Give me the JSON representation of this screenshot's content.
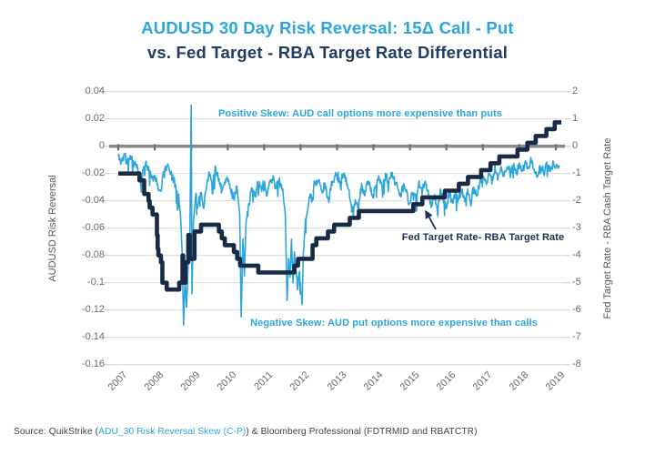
{
  "title": {
    "line1": "AUDUSD 30 Day Risk Reversal: 15Δ Call - Put",
    "line2": "vs. Fed Target - RBA Target Rate Differential"
  },
  "annotations": {
    "positive_skew": "Positive Skew: AUD call options more expensive than puts",
    "negative_skew": "Negative Skew: AUD put options more expensive than calls",
    "fed_line_label": "Fed Target Rate- RBA Target Rate"
  },
  "source": {
    "prefix": "Source: QuikStrike (",
    "link": "ADU_30 Risk Reversal Skew (C-P)",
    "suffix": ") & Bloomberg Professional (FDTRMID and RBATCTR)"
  },
  "colors": {
    "accent_blue": "#2BA6DC",
    "title_navy": "#1F3D60",
    "line_navy": "#172B47",
    "zero_line_gray": "#8B8B8B",
    "gridline": "#DDDDDD",
    "tick_text": "#666A6E"
  },
  "chart_data": {
    "type": "line",
    "title": "AUDUSD 30 Day Risk Reversal: 15Δ Call - Put vs. Fed Target - RBA Target Rate Differential",
    "grid": "horizontal",
    "zero_line": true,
    "noise_amplitude": 0.0042,
    "noise_seed": 11,
    "x_axis": {
      "range": [
        2006.75,
        2019.25
      ],
      "ticks": [
        2007,
        2008,
        2009,
        2010,
        2011,
        2012,
        2013,
        2014,
        2015,
        2016,
        2017,
        2018,
        2019
      ]
    },
    "left_axis": {
      "label": "AUDUSD Risk Reversal",
      "range": [
        -0.16,
        0.04
      ],
      "ticks": [
        "0.04",
        "0.02",
        "0",
        "-0.02",
        "-0.04",
        "-0.06",
        "-0.08",
        "-0.1",
        "-0.12",
        "-0.14",
        "-0.16"
      ],
      "tick_values": [
        0.04,
        0.02,
        0,
        -0.02,
        -0.04,
        -0.06,
        -0.08,
        -0.1,
        -0.12,
        -0.14,
        -0.16
      ]
    },
    "right_axis": {
      "label": "Fed Target Rate - RBA Cash Target Rate",
      "range": [
        -8,
        2
      ],
      "ticks": [
        "2",
        "1",
        "0",
        "-1",
        "-2",
        "-3",
        "-4",
        "-5",
        "-6",
        "-7",
        "-8"
      ],
      "tick_values": [
        2,
        1,
        0,
        -1,
        -2,
        -3,
        -4,
        -5,
        -6,
        -7,
        -8
      ]
    },
    "series": [
      {
        "name": "AUDUSD 30 Day Risk Reversal (15Δ Call - Put)",
        "axis": "left",
        "style": "jagged-line",
        "color": "#2CA5DC",
        "points": [
          [
            2007.0,
            -0.007
          ],
          [
            2007.08,
            -0.011
          ],
          [
            2007.17,
            -0.006
          ],
          [
            2007.25,
            -0.012
          ],
          [
            2007.33,
            -0.008
          ],
          [
            2007.42,
            -0.012
          ],
          [
            2007.5,
            -0.015
          ],
          [
            2007.58,
            -0.021
          ],
          [
            2007.63,
            -0.03
          ],
          [
            2007.67,
            -0.018
          ],
          [
            2007.75,
            -0.012
          ],
          [
            2007.83,
            -0.017
          ],
          [
            2007.92,
            -0.024
          ],
          [
            2008.0,
            -0.021
          ],
          [
            2008.08,
            -0.029
          ],
          [
            2008.17,
            -0.035
          ],
          [
            2008.25,
            -0.017
          ],
          [
            2008.33,
            -0.014
          ],
          [
            2008.42,
            -0.018
          ],
          [
            2008.5,
            -0.023
          ],
          [
            2008.58,
            -0.029
          ],
          [
            2008.67,
            -0.04
          ],
          [
            2008.71,
            -0.052
          ],
          [
            2008.75,
            -0.078
          ],
          [
            2008.79,
            -0.131
          ],
          [
            2008.83,
            -0.096
          ],
          [
            2008.87,
            -0.118
          ],
          [
            2008.92,
            -0.086
          ],
          [
            2008.96,
            -0.07
          ],
          [
            2009.0,
            0.03
          ],
          [
            2009.02,
            -0.108
          ],
          [
            2009.06,
            -0.056
          ],
          [
            2009.13,
            -0.033
          ],
          [
            2009.17,
            -0.046
          ],
          [
            2009.25,
            -0.031
          ],
          [
            2009.33,
            -0.045
          ],
          [
            2009.42,
            -0.029
          ],
          [
            2009.5,
            -0.019
          ],
          [
            2009.58,
            -0.027
          ],
          [
            2009.67,
            -0.016
          ],
          [
            2009.75,
            -0.023
          ],
          [
            2009.83,
            -0.032
          ],
          [
            2009.92,
            -0.026
          ],
          [
            2010.0,
            -0.023
          ],
          [
            2010.08,
            -0.031
          ],
          [
            2010.17,
            -0.039
          ],
          [
            2010.25,
            -0.029
          ],
          [
            2010.33,
            -0.05
          ],
          [
            2010.37,
            -0.125
          ],
          [
            2010.42,
            -0.068
          ],
          [
            2010.46,
            -0.095
          ],
          [
            2010.5,
            -0.058
          ],
          [
            2010.58,
            -0.043
          ],
          [
            2010.67,
            -0.031
          ],
          [
            2010.75,
            -0.037
          ],
          [
            2010.83,
            -0.027
          ],
          [
            2010.92,
            -0.032
          ],
          [
            2011.0,
            -0.025
          ],
          [
            2011.08,
            -0.035
          ],
          [
            2011.17,
            -0.026
          ],
          [
            2011.25,
            -0.022
          ],
          [
            2011.33,
            -0.031
          ],
          [
            2011.42,
            -0.025
          ],
          [
            2011.5,
            -0.032
          ],
          [
            2011.58,
            -0.05
          ],
          [
            2011.63,
            -0.113
          ],
          [
            2011.67,
            -0.082
          ],
          [
            2011.71,
            -0.096
          ],
          [
            2011.75,
            -0.068
          ],
          [
            2011.79,
            -0.1
          ],
          [
            2011.83,
            -0.078
          ],
          [
            2011.88,
            -0.092
          ],
          [
            2011.92,
            -0.106
          ],
          [
            2011.96,
            -0.091
          ],
          [
            2012.0,
            -0.103
          ],
          [
            2012.04,
            -0.116
          ],
          [
            2012.08,
            -0.074
          ],
          [
            2012.13,
            -0.058
          ],
          [
            2012.17,
            -0.05
          ],
          [
            2012.25,
            -0.038
          ],
          [
            2012.33,
            -0.03
          ],
          [
            2012.42,
            -0.026
          ],
          [
            2012.5,
            -0.024
          ],
          [
            2012.58,
            -0.034
          ],
          [
            2012.67,
            -0.027
          ],
          [
            2012.75,
            -0.042
          ],
          [
            2012.83,
            -0.03
          ],
          [
            2012.92,
            -0.024
          ],
          [
            2013.0,
            -0.02
          ],
          [
            2013.08,
            -0.028
          ],
          [
            2013.17,
            -0.018
          ],
          [
            2013.25,
            -0.026
          ],
          [
            2013.33,
            -0.033
          ],
          [
            2013.42,
            -0.048
          ],
          [
            2013.5,
            -0.04
          ],
          [
            2013.58,
            -0.045
          ],
          [
            2013.67,
            -0.03
          ],
          [
            2013.75,
            -0.036
          ],
          [
            2013.83,
            -0.026
          ],
          [
            2013.92,
            -0.032
          ],
          [
            2014.0,
            -0.036
          ],
          [
            2014.08,
            -0.028
          ],
          [
            2014.17,
            -0.024
          ],
          [
            2014.25,
            -0.03
          ],
          [
            2014.33,
            -0.022
          ],
          [
            2014.42,
            -0.027
          ],
          [
            2014.5,
            -0.02
          ],
          [
            2014.58,
            -0.025
          ],
          [
            2014.67,
            -0.03
          ],
          [
            2014.75,
            -0.037
          ],
          [
            2014.83,
            -0.029
          ],
          [
            2014.92,
            -0.034
          ],
          [
            2015.0,
            -0.044
          ],
          [
            2015.08,
            -0.032
          ],
          [
            2015.17,
            -0.038
          ],
          [
            2015.25,
            -0.028
          ],
          [
            2015.33,
            -0.034
          ],
          [
            2015.42,
            -0.026
          ],
          [
            2015.5,
            -0.032
          ],
          [
            2015.58,
            -0.043
          ],
          [
            2015.67,
            -0.036
          ],
          [
            2015.75,
            -0.045
          ],
          [
            2015.83,
            -0.033
          ],
          [
            2015.92,
            -0.039
          ],
          [
            2016.0,
            -0.046
          ],
          [
            2016.08,
            -0.035
          ],
          [
            2016.17,
            -0.041
          ],
          [
            2016.25,
            -0.034
          ],
          [
            2016.33,
            -0.039
          ],
          [
            2016.42,
            -0.031
          ],
          [
            2016.5,
            -0.04
          ],
          [
            2016.58,
            -0.033
          ],
          [
            2016.67,
            -0.041
          ],
          [
            2016.75,
            -0.03
          ],
          [
            2016.83,
            -0.037
          ],
          [
            2016.92,
            -0.027
          ],
          [
            2017.0,
            -0.022
          ],
          [
            2017.08,
            -0.028
          ],
          [
            2017.17,
            -0.019
          ],
          [
            2017.25,
            -0.025
          ],
          [
            2017.33,
            -0.017
          ],
          [
            2017.42,
            -0.023
          ],
          [
            2017.5,
            -0.016
          ],
          [
            2017.58,
            -0.021
          ],
          [
            2017.67,
            -0.014
          ],
          [
            2017.75,
            -0.02
          ],
          [
            2017.83,
            -0.014
          ],
          [
            2017.92,
            -0.019
          ],
          [
            2018.0,
            -0.013
          ],
          [
            2018.08,
            -0.019
          ],
          [
            2018.17,
            -0.012
          ],
          [
            2018.25,
            -0.018
          ],
          [
            2018.33,
            -0.011
          ],
          [
            2018.42,
            -0.017
          ],
          [
            2018.5,
            -0.022
          ],
          [
            2018.58,
            -0.015
          ],
          [
            2018.67,
            -0.019
          ],
          [
            2018.75,
            -0.013
          ],
          [
            2018.83,
            -0.018
          ],
          [
            2018.92,
            -0.014
          ],
          [
            2019.0,
            -0.016
          ],
          [
            2019.1,
            -0.014
          ]
        ]
      },
      {
        "name": "Fed Target Rate - RBA Target Rate",
        "axis": "right",
        "style": "step",
        "color": "#172B47",
        "points": [
          [
            2007.0,
            -1.0
          ],
          [
            2007.58,
            -1.25
          ],
          [
            2007.71,
            -1.75
          ],
          [
            2007.83,
            -2.0
          ],
          [
            2007.86,
            -2.25
          ],
          [
            2007.94,
            -2.5
          ],
          [
            2008.06,
            -3.25
          ],
          [
            2008.08,
            -3.75
          ],
          [
            2008.1,
            -4.0
          ],
          [
            2008.17,
            -4.25
          ],
          [
            2008.21,
            -5.0
          ],
          [
            2008.33,
            -5.25
          ],
          [
            2008.67,
            -5.0
          ],
          [
            2008.76,
            -4.0
          ],
          [
            2008.78,
            -4.5
          ],
          [
            2008.82,
            -5.0
          ],
          [
            2008.84,
            -4.25
          ],
          [
            2008.92,
            -3.25
          ],
          [
            2008.96,
            -4.125
          ],
          [
            2009.09,
            -3.125
          ],
          [
            2009.27,
            -2.875
          ],
          [
            2009.76,
            -3.125
          ],
          [
            2009.84,
            -3.375
          ],
          [
            2009.92,
            -3.625
          ],
          [
            2010.17,
            -3.875
          ],
          [
            2010.26,
            -4.125
          ],
          [
            2010.34,
            -4.375
          ],
          [
            2010.84,
            -4.625
          ],
          [
            2011.83,
            -4.375
          ],
          [
            2011.93,
            -4.125
          ],
          [
            2012.33,
            -3.625
          ],
          [
            2012.43,
            -3.375
          ],
          [
            2012.75,
            -3.125
          ],
          [
            2012.92,
            -2.875
          ],
          [
            2013.35,
            -2.625
          ],
          [
            2013.6,
            -2.375
          ],
          [
            2015.09,
            -2.125
          ],
          [
            2015.34,
            -1.875
          ],
          [
            2015.96,
            -1.625
          ],
          [
            2016.34,
            -1.375
          ],
          [
            2016.59,
            -1.125
          ],
          [
            2016.95,
            -0.875
          ],
          [
            2017.21,
            -0.625
          ],
          [
            2017.45,
            -0.375
          ],
          [
            2017.95,
            -0.125
          ],
          [
            2018.22,
            0.125
          ],
          [
            2018.45,
            0.375
          ],
          [
            2018.74,
            0.625
          ],
          [
            2018.97,
            0.875
          ],
          [
            2019.15,
            0.875
          ]
        ]
      }
    ]
  }
}
